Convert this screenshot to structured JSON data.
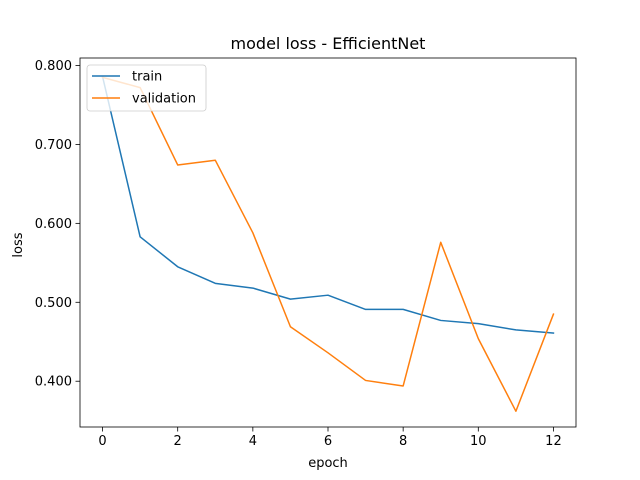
{
  "chart_data": {
    "type": "line",
    "title": "model loss - EfficientNet",
    "xlabel": "epoch",
    "ylabel": "loss",
    "x": [
      0,
      1,
      2,
      3,
      4,
      5,
      6,
      7,
      8,
      9,
      10,
      11,
      12
    ],
    "xlim": [
      -0.6,
      12.6
    ],
    "ylim": [
      0.342,
      0.8095
    ],
    "xticks": [
      0,
      2,
      4,
      6,
      8,
      10,
      12
    ],
    "xtick_labels": [
      "0",
      "2",
      "4",
      "6",
      "8",
      "10",
      "12"
    ],
    "yticks": [
      0.4,
      0.5,
      0.6,
      0.7,
      0.8
    ],
    "ytick_labels": [
      "0.400",
      "0.500",
      "0.600",
      "0.700",
      "0.800"
    ],
    "grid": false,
    "legend_position": "top-left",
    "series": [
      {
        "name": "train",
        "color": "#1f77b4",
        "values": [
          0.786,
          0.583,
          0.545,
          0.524,
          0.518,
          0.504,
          0.509,
          0.491,
          0.491,
          0.477,
          0.473,
          0.465,
          0.461
        ]
      },
      {
        "name": "validation",
        "color": "#ff7f0e",
        "values": [
          0.785,
          0.772,
          0.674,
          0.68,
          0.588,
          0.469,
          0.436,
          0.401,
          0.394,
          0.576,
          0.454,
          0.362,
          0.485
        ]
      }
    ]
  }
}
